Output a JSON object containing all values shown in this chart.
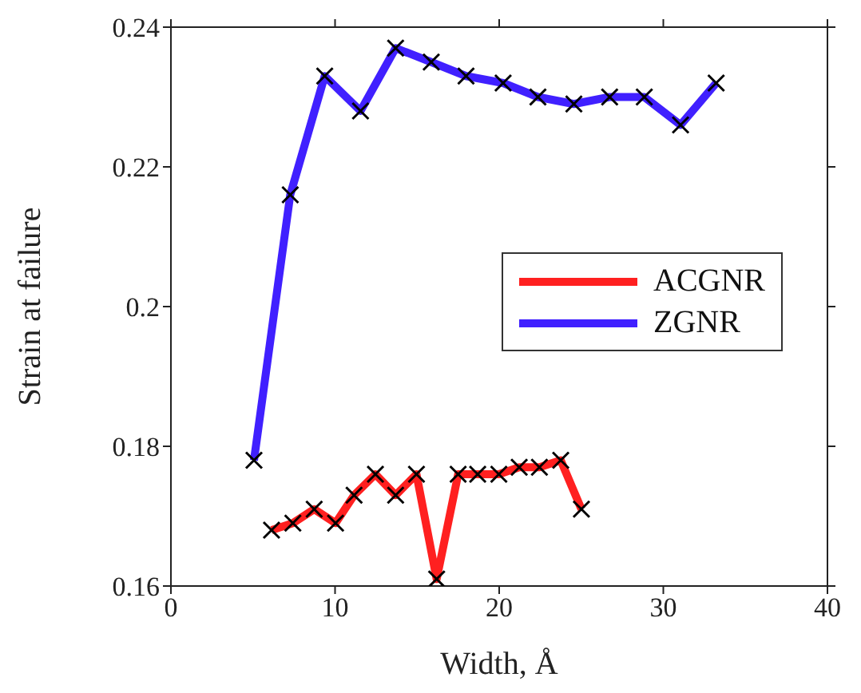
{
  "chart_data": {
    "type": "line",
    "xlabel": "Width, Å",
    "ylabel": "Strain at failure",
    "xlim": [
      0,
      40
    ],
    "xticks": [
      0,
      10,
      20,
      30,
      40
    ],
    "ylim": [
      0.16,
      0.24
    ],
    "yticks": [
      0.16,
      0.18,
      0.2,
      0.22,
      0.24
    ],
    "legend": "right",
    "marker": "cross",
    "series": [
      {
        "name": "ACGNR",
        "color": "#ff2020",
        "x": [
          6.13,
          7.43,
          8.73,
          10.03,
          11.16,
          12.46,
          13.69,
          14.96,
          16.19,
          17.5,
          18.69,
          19.98,
          21.22,
          22.45,
          23.75,
          25.01
        ],
        "values": [
          0.168,
          0.169,
          0.171,
          0.169,
          0.173,
          0.176,
          0.173,
          0.176,
          0.161,
          0.176,
          0.176,
          0.176,
          0.177,
          0.177,
          0.178,
          0.171
        ]
      },
      {
        "name": "ZGNR",
        "color": "#4020ff",
        "x": [
          5.06,
          7.27,
          9.37,
          11.55,
          13.69,
          15.86,
          17.98,
          20.24,
          22.36,
          24.55,
          26.73,
          28.84,
          31.05,
          33.22
        ],
        "values": [
          0.178,
          0.216,
          0.233,
          0.228,
          0.237,
          0.235,
          0.233,
          0.232,
          0.23,
          0.229,
          0.23,
          0.23,
          0.226,
          0.232
        ]
      }
    ]
  }
}
